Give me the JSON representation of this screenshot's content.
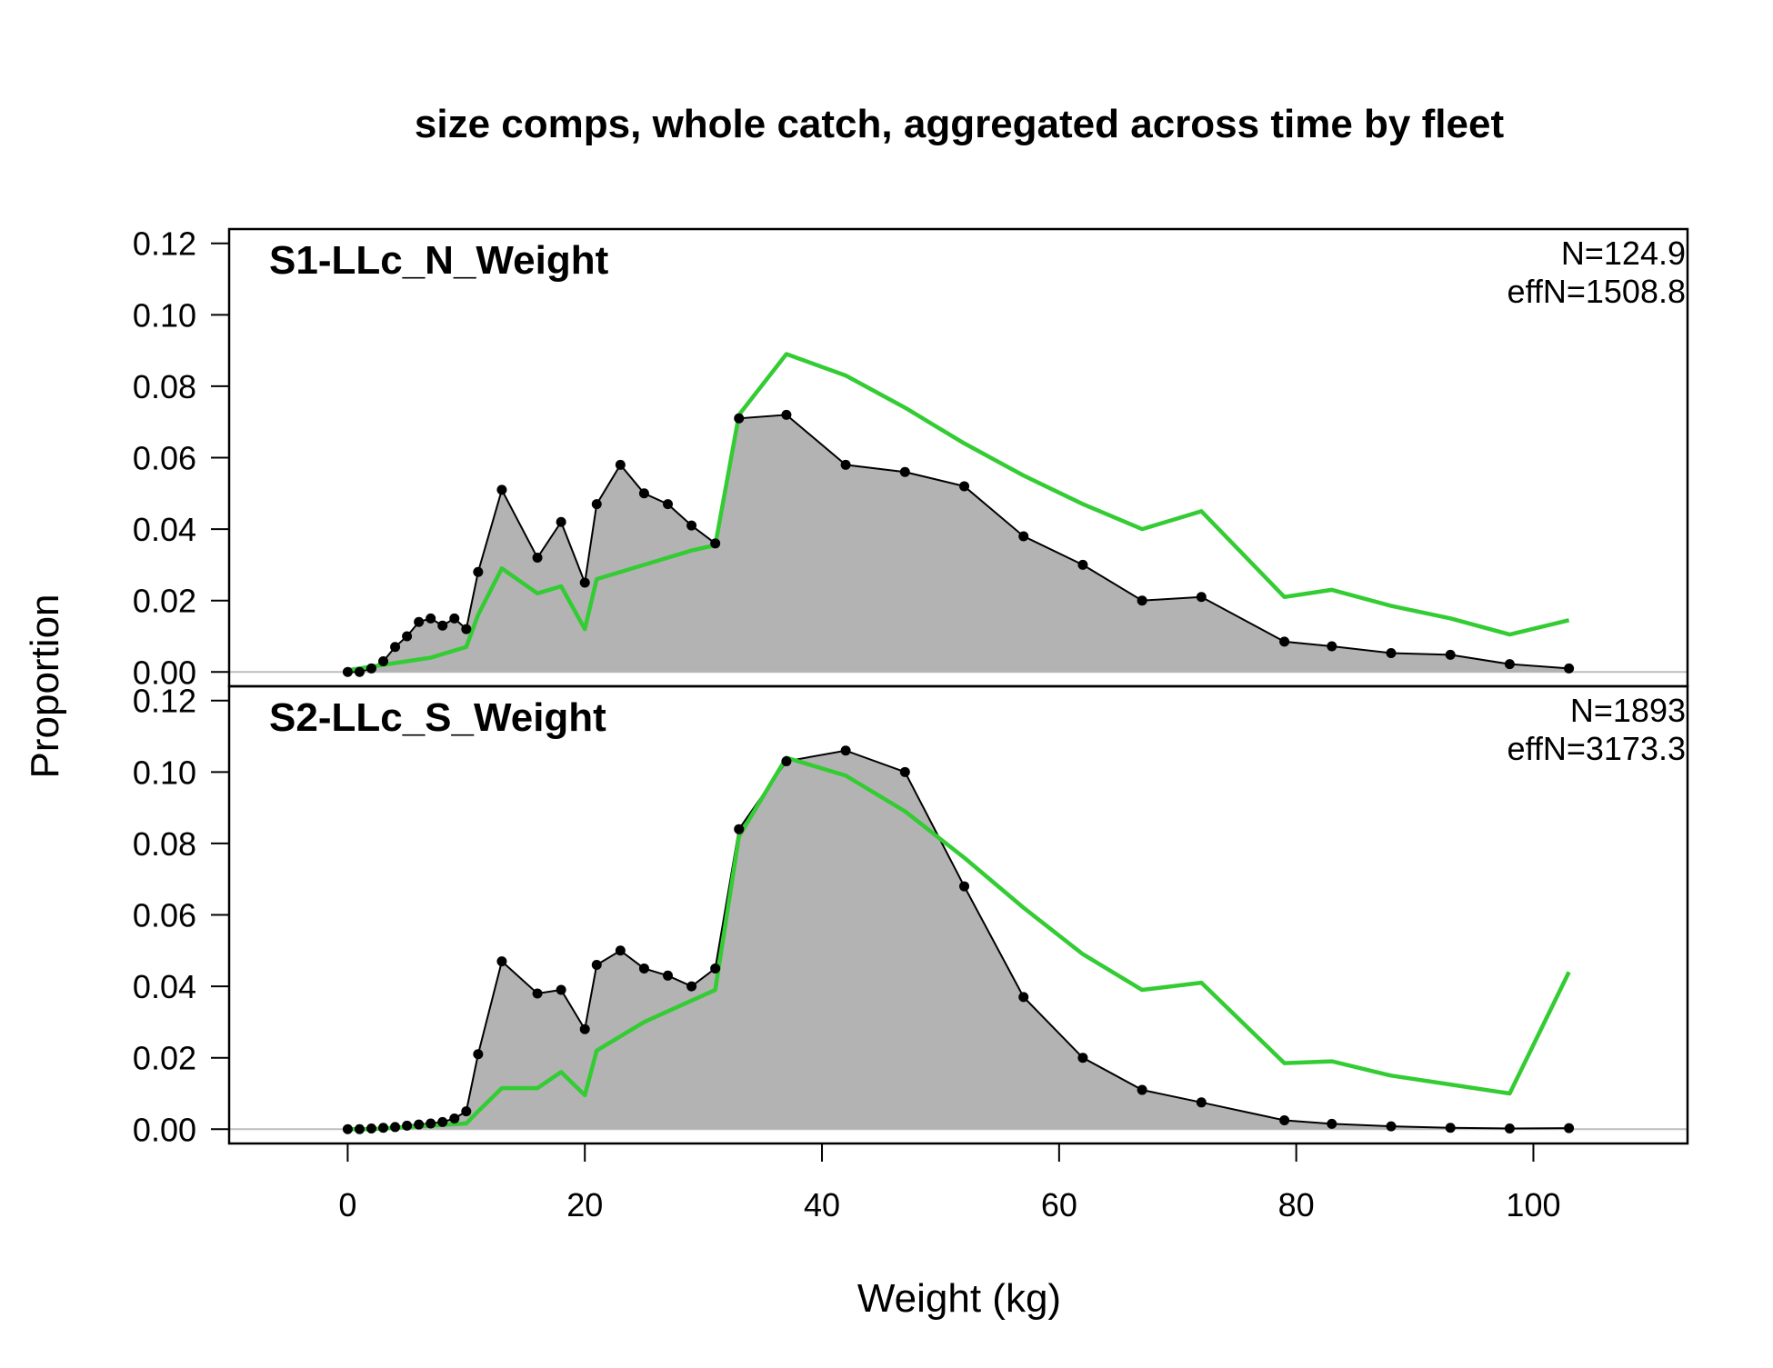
{
  "title": "size comps, whole catch, aggregated across time by fleet",
  "ylabel": "Proportion",
  "colors": {
    "observed_fill": "#b3b3b3",
    "observed_line": "#000000",
    "expected_line": "#33cc33",
    "zero_line": "#bebebe"
  },
  "chart_data": {
    "type": "area",
    "title": "size comps, whole catch, aggregated across time by fleet",
    "xlabel": "Weight (kg)",
    "ylabel": "Proportion",
    "xlim": [
      -10,
      113
    ],
    "ylim": [
      -0.004,
      0.124
    ],
    "x_ticks": [
      0,
      20,
      40,
      60,
      80,
      100
    ],
    "x_tick_labels": [
      "0",
      "20",
      "40",
      "60",
      "80",
      "100"
    ],
    "y_ticks": [
      0,
      0.02,
      0.04,
      0.06,
      0.08,
      0.1,
      0.12
    ],
    "y_tick_labels": [
      "0.00",
      "0.02",
      "0.04",
      "0.06",
      "0.08",
      "0.10",
      "0.12"
    ],
    "grid": false,
    "panels": [
      {
        "name": "S1-LLc_N_Weight",
        "n_label": "N=124.9",
        "effn_label": "effN=1508.8",
        "observed": {
          "x": [
            0,
            1,
            2,
            3,
            4,
            5,
            6,
            7,
            8,
            9,
            10,
            11,
            13,
            16,
            18,
            20,
            21,
            23,
            25,
            27,
            29,
            31,
            33,
            37,
            42,
            47,
            52,
            57,
            62,
            67,
            72,
            79,
            83,
            88,
            93,
            98,
            103
          ],
          "y": [
            0,
            0,
            0.001,
            0.003,
            0.007,
            0.01,
            0.014,
            0.015,
            0.013,
            0.015,
            0.012,
            0.028,
            0.051,
            0.032,
            0.042,
            0.025,
            0.047,
            0.058,
            0.05,
            0.047,
            0.041,
            0.036,
            0.071,
            0.072,
            0.058,
            0.056,
            0.052,
            0.038,
            0.03,
            0.02,
            0.021,
            0.0085,
            0.0072,
            0.0053,
            0.0048,
            0.0022,
            0.001
          ]
        },
        "expected": {
          "x": [
            0,
            1,
            2,
            3,
            4,
            5,
            6,
            7,
            8,
            9,
            10,
            11,
            13,
            16,
            18,
            20,
            21,
            23,
            25,
            27,
            29,
            31,
            33,
            37,
            42,
            47,
            52,
            57,
            62,
            67,
            72,
            79,
            83,
            88,
            93,
            98,
            103
          ],
          "y": [
            0.0005,
            0.001,
            0.0015,
            0.002,
            0.0025,
            0.003,
            0.0035,
            0.004,
            0.005,
            0.006,
            0.007,
            0.016,
            0.029,
            0.022,
            0.024,
            0.012,
            0.026,
            0.028,
            0.03,
            0.032,
            0.034,
            0.0355,
            0.072,
            0.089,
            0.083,
            0.074,
            0.064,
            0.055,
            0.047,
            0.04,
            0.045,
            0.021,
            0.023,
            0.0185,
            0.015,
            0.0105,
            0.0145
          ]
        }
      },
      {
        "name": "S2-LLc_S_Weight",
        "n_label": "N=1893",
        "effn_label": "effN=3173.3",
        "observed": {
          "x": [
            0,
            1,
            2,
            3,
            4,
            5,
            6,
            7,
            8,
            9,
            10,
            11,
            13,
            16,
            18,
            20,
            21,
            23,
            25,
            27,
            29,
            31,
            33,
            37,
            42,
            47,
            52,
            57,
            62,
            67,
            72,
            79,
            83,
            88,
            93,
            98,
            103
          ],
          "y": [
            0,
            0,
            0.0002,
            0.0004,
            0.0006,
            0.001,
            0.0013,
            0.0016,
            0.002,
            0.003,
            0.005,
            0.021,
            0.047,
            0.038,
            0.039,
            0.028,
            0.046,
            0.05,
            0.045,
            0.043,
            0.04,
            0.045,
            0.084,
            0.103,
            0.106,
            0.1,
            0.068,
            0.037,
            0.02,
            0.011,
            0.0075,
            0.0025,
            0.0015,
            0.0008,
            0.0004,
            0.0002,
            0.0003
          ]
        },
        "expected": {
          "x": [
            0,
            1,
            2,
            3,
            4,
            5,
            6,
            7,
            8,
            9,
            10,
            11,
            13,
            16,
            18,
            20,
            21,
            23,
            25,
            27,
            29,
            31,
            33,
            37,
            42,
            47,
            52,
            57,
            62,
            67,
            72,
            79,
            83,
            88,
            93,
            98,
            103
          ],
          "y": [
            0,
            0,
            0,
            0.0002,
            0.0004,
            0.0006,
            0.0008,
            0.001,
            0.0012,
            0.0014,
            0.0016,
            0.005,
            0.0115,
            0.0115,
            0.016,
            0.0095,
            0.022,
            0.026,
            0.03,
            0.033,
            0.036,
            0.039,
            0.082,
            0.104,
            0.099,
            0.089,
            0.076,
            0.062,
            0.049,
            0.039,
            0.041,
            0.0185,
            0.019,
            0.015,
            0.0125,
            0.01,
            0.044
          ]
        }
      }
    ]
  }
}
